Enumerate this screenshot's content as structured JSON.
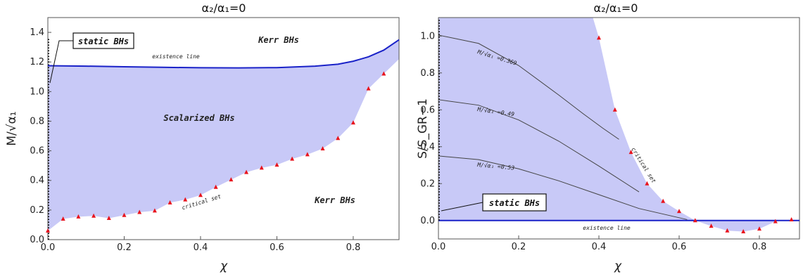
{
  "chart_data": [
    {
      "type": "area",
      "title": "α₂/α₁=0",
      "xlabel": "χ",
      "ylabel": "M/√α₁",
      "xlim": [
        0,
        0.92
      ],
      "ylim": [
        0,
        1.5
      ],
      "xticks": [
        "0.0",
        "0.2",
        "0.4",
        "0.6",
        "0.8"
      ],
      "xtick_values": [
        0,
        0.2,
        0.4,
        0.6,
        0.8
      ],
      "yticks": [
        "0.0",
        "0.2",
        "0.4",
        "0.6",
        "0.8",
        "1.0",
        "1.2",
        "1.4"
      ],
      "ytick_values": [
        0,
        0.2,
        0.4,
        0.6,
        0.8,
        1.0,
        1.2,
        1.4
      ],
      "existence_line": {
        "label": "existence line",
        "x": [
          0,
          0.1,
          0.2,
          0.3,
          0.4,
          0.5,
          0.6,
          0.7,
          0.76,
          0.8,
          0.84,
          0.88,
          0.92
        ],
        "y": [
          1.175,
          1.172,
          1.168,
          1.164,
          1.161,
          1.16,
          1.162,
          1.172,
          1.185,
          1.205,
          1.235,
          1.28,
          1.35
        ]
      },
      "critical_set": {
        "label": "critical set",
        "x": [
          0,
          0.04,
          0.08,
          0.12,
          0.16,
          0.2,
          0.24,
          0.28,
          0.32,
          0.36,
          0.4,
          0.44,
          0.48,
          0.52,
          0.56,
          0.6,
          0.64,
          0.68,
          0.72,
          0.76,
          0.8,
          0.84,
          0.88
        ],
        "y": [
          0.06,
          0.14,
          0.155,
          0.16,
          0.145,
          0.165,
          0.185,
          0.195,
          0.25,
          0.27,
          0.3,
          0.355,
          0.405,
          0.455,
          0.485,
          0.505,
          0.545,
          0.575,
          0.615,
          0.685,
          0.79,
          1.02,
          1.12
        ]
      },
      "annotations": {
        "region_top": "Kerr BHs",
        "region_middle": "Scalarized BHs",
        "region_bottom": "Kerr BHs",
        "static_box": "static BHs"
      }
    },
    {
      "type": "area",
      "title": "α₂/α₁=0",
      "xlabel": "χ",
      "ylabel": "S/S_GR−1",
      "xlim": [
        0,
        0.9
      ],
      "ylim": [
        -0.1,
        1.1
      ],
      "xticks": [
        "0.0",
        "0.2",
        "0.4",
        "0.6",
        "0.8"
      ],
      "xtick_values": [
        0,
        0.2,
        0.4,
        0.6,
        0.8
      ],
      "yticks": [
        "0.0",
        "0.2",
        "0.4",
        "0.6",
        "0.8",
        "1.0"
      ],
      "ytick_values": [
        0,
        0.2,
        0.4,
        0.6,
        0.8,
        1.0
      ],
      "critical_set": {
        "label": "critical set",
        "x": [
          0.4,
          0.44,
          0.48,
          0.52,
          0.56,
          0.6,
          0.64,
          0.68,
          0.72,
          0.76,
          0.8,
          0.84,
          0.88
        ],
        "y": [
          0.99,
          0.6,
          0.37,
          0.2,
          0.105,
          0.05,
          0.0,
          -0.03,
          -0.055,
          -0.06,
          -0.045,
          -0.005,
          0.005
        ]
      },
      "constant_mass_curves": [
        {
          "label": "M/√α₁ =0.369",
          "x": [
            0,
            0.1,
            0.2,
            0.3,
            0.36,
            0.41,
            0.45
          ],
          "y": [
            1.005,
            0.96,
            0.84,
            0.68,
            0.58,
            0.5,
            0.44
          ]
        },
        {
          "label": "M/√α₁ =0.49",
          "x": [
            0,
            0.1,
            0.2,
            0.3,
            0.4,
            0.5
          ],
          "y": [
            0.655,
            0.625,
            0.545,
            0.43,
            0.295,
            0.155
          ]
        },
        {
          "label": "M/√α₁ =0.53",
          "x": [
            0,
            0.1,
            0.2,
            0.3,
            0.4,
            0.5,
            0.62
          ],
          "y": [
            0.35,
            0.33,
            0.28,
            0.215,
            0.14,
            0.065,
            0.005
          ]
        }
      ],
      "existence_line": {
        "label": "existence line",
        "y": 0
      },
      "annotations": {
        "static_box": "static BHs"
      }
    }
  ]
}
